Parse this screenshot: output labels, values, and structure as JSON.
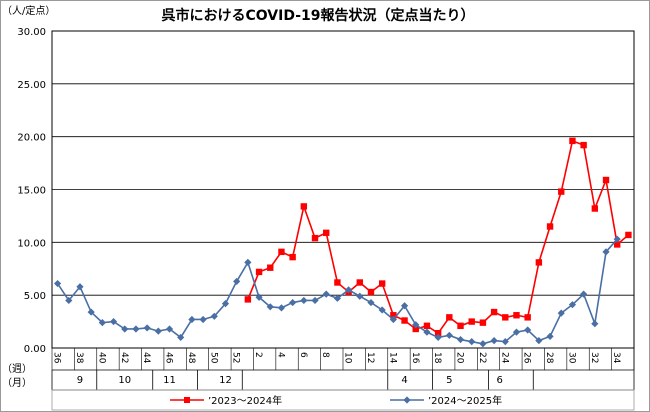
{
  "chart_data": {
    "type": "line",
    "title": "呉市におけるCOVID-19報告状況（定点当たり）",
    "y_unit_label": "（人/定点）",
    "week_label": "（週）",
    "month_label": "（月）",
    "ylim": [
      0,
      30
    ],
    "yticks": [
      "30.00",
      "25.00",
      "20.00",
      "15.00",
      "10.00",
      "5.00",
      "0.00"
    ],
    "grid": "horizontal",
    "legend_position": "bottom",
    "week_ticks": [
      "36",
      "38",
      "40",
      "42",
      "44",
      "46",
      "48",
      "50",
      "52",
      "2",
      "4",
      "6",
      "8",
      "10",
      "12",
      "14",
      "16",
      "18",
      "20",
      "22",
      "24",
      "26",
      "28",
      "30",
      "32",
      "34"
    ],
    "month_ticks": [
      {
        "label": "9",
        "week_index": 2
      },
      {
        "label": "10",
        "week_index": 6
      },
      {
        "label": "11",
        "week_index": 10
      },
      {
        "label": "12",
        "week_index": 15
      },
      {
        "label": "4",
        "week_index": 31
      },
      {
        "label": "5",
        "week_index": 35
      },
      {
        "label": "6",
        "week_index": 39.5
      }
    ],
    "series": [
      {
        "name": "’2023～2024年",
        "color": "#ff0000",
        "marker": "square",
        "start_index": 17,
        "values": [
          4.6,
          7.2,
          7.6,
          9.1,
          8.6,
          13.4,
          10.4,
          10.9,
          6.2,
          5.3,
          6.2,
          5.3,
          6.1,
          3.1,
          2.6,
          1.8,
          2.1,
          1.4,
          2.9,
          2.1,
          2.5,
          2.4,
          3.4,
          2.9,
          3.1,
          2.9,
          8.1,
          11.5,
          14.8,
          19.6,
          19.2,
          13.2,
          15.9,
          9.8,
          10.7
        ]
      },
      {
        "name": "’2024～2025年",
        "color": "#4a6fa5",
        "marker": "diamond",
        "start_index": 0,
        "values": [
          6.1,
          4.5,
          5.8,
          3.4,
          2.4,
          2.5,
          1.8,
          1.8,
          1.9,
          1.6,
          1.8,
          1.0,
          2.7,
          2.7,
          3.0,
          4.2,
          6.3,
          8.1,
          4.8,
          3.9,
          3.8,
          4.3,
          4.5,
          4.5,
          5.1,
          4.7,
          5.5,
          4.9,
          4.3,
          3.6,
          2.7,
          4.0,
          2.2,
          1.5,
          1.0,
          1.2,
          0.8,
          0.6,
          0.4,
          0.7,
          0.6,
          1.5,
          1.7,
          0.7,
          1.1,
          3.3,
          4.1,
          5.1,
          2.3,
          9.1,
          10.3
        ]
      }
    ]
  }
}
